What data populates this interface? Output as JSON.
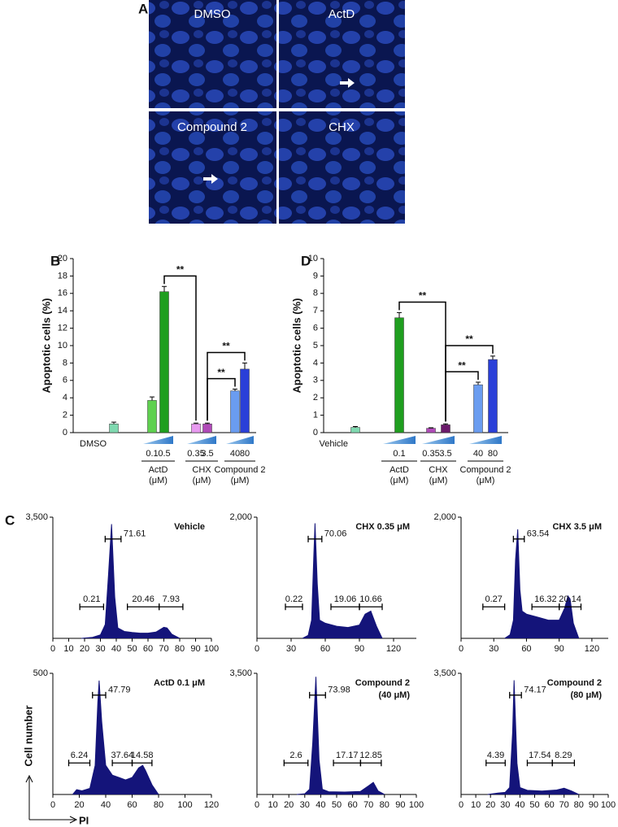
{
  "panel_a": {
    "label": "A",
    "images": [
      "DMSO",
      "ActD",
      "Compound 2",
      "CHX"
    ]
  },
  "panel_c": {
    "label": "C",
    "ylabel": "Cell number",
    "xlabel": "PI"
  },
  "chart_data": [
    {
      "type": "bar",
      "panel": "B",
      "ylabel": "Apoptotic cells (%)",
      "ylim": [
        0,
        20
      ],
      "yticks": [
        0,
        2,
        4,
        6,
        8,
        10,
        12,
        14,
        16,
        18,
        20
      ],
      "categories": [
        "DMSO",
        "0.1",
        "0.5",
        "0.35",
        "3.5",
        "40",
        "80"
      ],
      "values": [
        1.0,
        3.7,
        16.2,
        1.0,
        1.0,
        4.8,
        7.3
      ],
      "errors": [
        0.2,
        0.4,
        0.6,
        0.1,
        0.1,
        0.2,
        0.7
      ],
      "colors": [
        "#7fd9b0",
        "#5fd14f",
        "#1f9e1f",
        "#e89af0",
        "#b04ab8",
        "#6a9cf0",
        "#2a3fd8"
      ],
      "groups": [
        {
          "name": "ActD",
          "unit": "(μM)",
          "members": [
            1,
            2
          ]
        },
        {
          "name": "CHX",
          "unit": "(μM)",
          "members": [
            3,
            4
          ]
        },
        {
          "name": "Compound 2",
          "unit": "(μM)",
          "members": [
            5,
            6
          ]
        }
      ],
      "comparisons": [
        {
          "from": 2,
          "to": 3,
          "label": "**"
        },
        {
          "from": 4,
          "to": 5,
          "label": "**"
        },
        {
          "from": 4,
          "to": 6,
          "label": "**"
        }
      ]
    },
    {
      "type": "bar",
      "panel": "D",
      "ylabel": "Apoptotic cells (%)",
      "ylim": [
        0,
        10
      ],
      "yticks": [
        0,
        1,
        2,
        3,
        4,
        5,
        6,
        7,
        8,
        9,
        10
      ],
      "categories": [
        "Vehicle",
        "0.1",
        "0.35",
        "3.5",
        "40",
        "80"
      ],
      "values": [
        0.3,
        6.6,
        0.25,
        0.45,
        2.75,
        4.2
      ],
      "errors": [
        0.05,
        0.3,
        0.03,
        0.05,
        0.15,
        0.2
      ],
      "colors": [
        "#7fd9b0",
        "#1f9e1f",
        "#b04ab8",
        "#6b1a6b",
        "#6a9cf0",
        "#2a3fd8"
      ],
      "groups": [
        {
          "name": "ActD",
          "unit": "(μM)",
          "members": [
            1
          ]
        },
        {
          "name": "CHX",
          "unit": "(μM)",
          "members": [
            2,
            3
          ]
        },
        {
          "name": "Compound 2",
          "unit": "(μM)",
          "members": [
            4,
            5
          ]
        }
      ],
      "comparisons": [
        {
          "from": 1,
          "to": 3,
          "label": "**"
        },
        {
          "from": 3,
          "to": 4,
          "label": "**"
        },
        {
          "from": 3,
          "to": 5,
          "label": "**"
        }
      ]
    },
    {
      "type": "histogram",
      "title": [
        "Vehicle"
      ],
      "color": "#14147a",
      "xlim": [
        0,
        100
      ],
      "xticks": [
        0,
        10,
        20,
        30,
        40,
        50,
        60,
        70,
        80,
        90,
        100
      ],
      "ylim": [
        0,
        3500
      ],
      "yticks": [
        {
          "value": 3500,
          "label": "3,500"
        }
      ],
      "x": [
        18,
        25,
        30,
        33,
        35,
        37,
        39,
        41,
        45,
        50,
        55,
        60,
        65,
        70,
        72,
        75,
        80
      ],
      "values": [
        0,
        30,
        100,
        400,
        1800,
        3300,
        1200,
        300,
        200,
        170,
        150,
        150,
        180,
        320,
        300,
        120,
        0
      ],
      "gates": [
        {
          "value": 0.21,
          "range": [
            17,
            32
          ]
        },
        {
          "value": 71.61,
          "range": [
            33,
            43
          ]
        },
        {
          "value": 20.46,
          "range": [
            47,
            67
          ]
        },
        {
          "value": 7.93,
          "range": [
            67,
            82
          ]
        }
      ]
    },
    {
      "type": "histogram",
      "title": [
        "CHX 0.35 μM"
      ],
      "color": "#14147a",
      "xlim": [
        0,
        140
      ],
      "xticks": [
        0,
        30,
        60,
        90,
        120
      ],
      "ylim": [
        0,
        2000
      ],
      "yticks": [
        {
          "value": 2000,
          "label": "2,000"
        }
      ],
      "x": [
        40,
        45,
        48,
        50,
        51,
        53,
        55,
        60,
        70,
        80,
        90,
        95,
        100,
        105,
        110
      ],
      "values": [
        0,
        50,
        300,
        1400,
        1900,
        900,
        300,
        250,
        200,
        180,
        220,
        400,
        450,
        200,
        0
      ],
      "gates": [
        {
          "value": 0.22,
          "range": [
            25,
            40
          ]
        },
        {
          "value": 70.06,
          "range": [
            45,
            57
          ]
        },
        {
          "value": 19.06,
          "range": [
            65,
            90
          ]
        },
        {
          "value": 10.66,
          "range": [
            90,
            110
          ]
        }
      ]
    },
    {
      "type": "histogram",
      "title": [
        "CHX 3.5 μM"
      ],
      "color": "#14147a",
      "xlim": [
        0,
        135
      ],
      "xticks": [
        0,
        30,
        60,
        90,
        120
      ],
      "ylim": [
        0,
        2000
      ],
      "yticks": [
        {
          "value": 2000,
          "label": "2,000"
        }
      ],
      "x": [
        40,
        45,
        48,
        50,
        52,
        54,
        56,
        60,
        70,
        80,
        90,
        95,
        98,
        100,
        103,
        108
      ],
      "values": [
        0,
        60,
        300,
        1300,
        1800,
        800,
        450,
        400,
        350,
        300,
        300,
        500,
        700,
        650,
        250,
        0
      ],
      "gates": [
        {
          "value": 0.27,
          "range": [
            20,
            40
          ]
        },
        {
          "value": 63.54,
          "range": [
            48,
            58
          ]
        },
        {
          "value": 16.32,
          "range": [
            65,
            90
          ]
        },
        {
          "value": 20.14,
          "range": [
            90,
            110
          ]
        }
      ]
    },
    {
      "type": "histogram",
      "title": [
        "ActD 0.1 μM"
      ],
      "color": "#14147a",
      "xlim": [
        0,
        120
      ],
      "xticks": [
        0,
        20,
        40,
        60,
        80,
        100,
        120
      ],
      "ylim": [
        0,
        500
      ],
      "yticks": [
        500
      ],
      "x": [
        15,
        18,
        22,
        28,
        32,
        34,
        35,
        37,
        40,
        45,
        50,
        55,
        60,
        65,
        68,
        70,
        75,
        80
      ],
      "values": [
        0,
        20,
        15,
        25,
        120,
        380,
        470,
        300,
        120,
        80,
        70,
        60,
        70,
        110,
        120,
        100,
        40,
        0
      ],
      "gates": [
        {
          "value": 6.24,
          "range": [
            12,
            28
          ]
        },
        {
          "value": 47.79,
          "range": [
            30,
            40
          ]
        },
        {
          "value": 37.64,
          "range": [
            45,
            60
          ]
        },
        {
          "value": 14.58,
          "range": [
            60,
            75
          ]
        }
      ]
    },
    {
      "type": "histogram",
      "title": [
        "Compound 2",
        "(40 μM)"
      ],
      "color": "#14147a",
      "xlim": [
        0,
        100
      ],
      "xticks": [
        0,
        10,
        20,
        30,
        40,
        50,
        60,
        70,
        80,
        90,
        100
      ],
      "ylim": [
        0,
        3500
      ],
      "yticks": [
        {
          "value": 3500,
          "label": "3,500"
        }
      ],
      "x": [
        25,
        30,
        33,
        35,
        37,
        39,
        41,
        45,
        55,
        65,
        70,
        73,
        76,
        80
      ],
      "values": [
        0,
        20,
        150,
        1500,
        3400,
        1000,
        150,
        80,
        70,
        90,
        250,
        350,
        100,
        0
      ],
      "gates": [
        {
          "value": 2.6,
          "range": [
            17,
            32
          ]
        },
        {
          "value": 73.98,
          "range": [
            33,
            43
          ]
        },
        {
          "value": 17.17,
          "range": [
            48,
            65
          ]
        },
        {
          "value": 12.85,
          "range": [
            65,
            78
          ]
        }
      ]
    },
    {
      "type": "histogram",
      "title": [
        "Compound 2",
        "(80 μM)"
      ],
      "color": "#14147a",
      "xlim": [
        0,
        100
      ],
      "xticks": [
        0,
        10,
        20,
        30,
        40,
        50,
        60,
        70,
        80,
        90,
        100
      ],
      "ylim": [
        0,
        3500
      ],
      "yticks": [
        {
          "value": 3500,
          "label": "3,500"
        }
      ],
      "x": [
        18,
        25,
        30,
        33,
        35,
        36,
        38,
        40,
        45,
        55,
        65,
        70,
        75,
        80
      ],
      "values": [
        0,
        40,
        60,
        200,
        1800,
        3300,
        900,
        200,
        120,
        100,
        130,
        180,
        100,
        0
      ],
      "gates": [
        {
          "value": 4.39,
          "range": [
            17,
            30
          ]
        },
        {
          "value": 74.17,
          "range": [
            33,
            41
          ]
        },
        {
          "value": 17.54,
          "range": [
            45,
            62
          ]
        },
        {
          "value": 8.29,
          "range": [
            62,
            77
          ]
        }
      ]
    }
  ]
}
